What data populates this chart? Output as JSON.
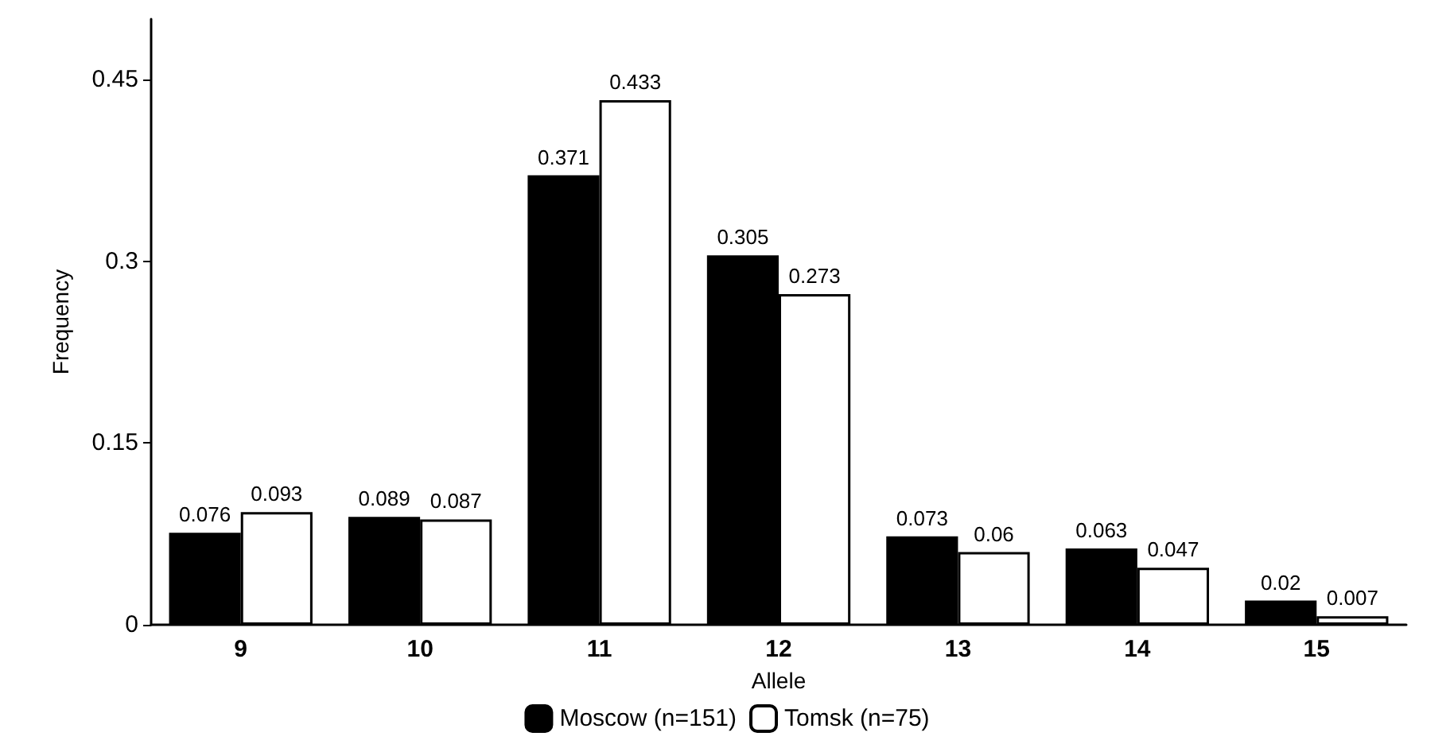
{
  "chart_data": {
    "type": "bar",
    "xlabel": "Allele",
    "ylabel": "Frequency",
    "categories": [
      "9",
      "10",
      "11",
      "12",
      "13",
      "14",
      "15"
    ],
    "series": [
      {
        "name": "Moscow (n=151)",
        "color": "#000000",
        "values": [
          0.076,
          0.089,
          0.371,
          0.305,
          0.073,
          0.063,
          0.02
        ]
      },
      {
        "name": "Tomsk (n=75)",
        "color": "#ffffff",
        "values": [
          0.093,
          0.087,
          0.433,
          0.273,
          0.06,
          0.047,
          0.007
        ]
      }
    ],
    "ylim": [
      0,
      0.5
    ],
    "yticks": [
      0,
      0.15,
      0.3,
      0.45
    ],
    "data_labels": true,
    "legend": "bottom",
    "grid": false
  }
}
